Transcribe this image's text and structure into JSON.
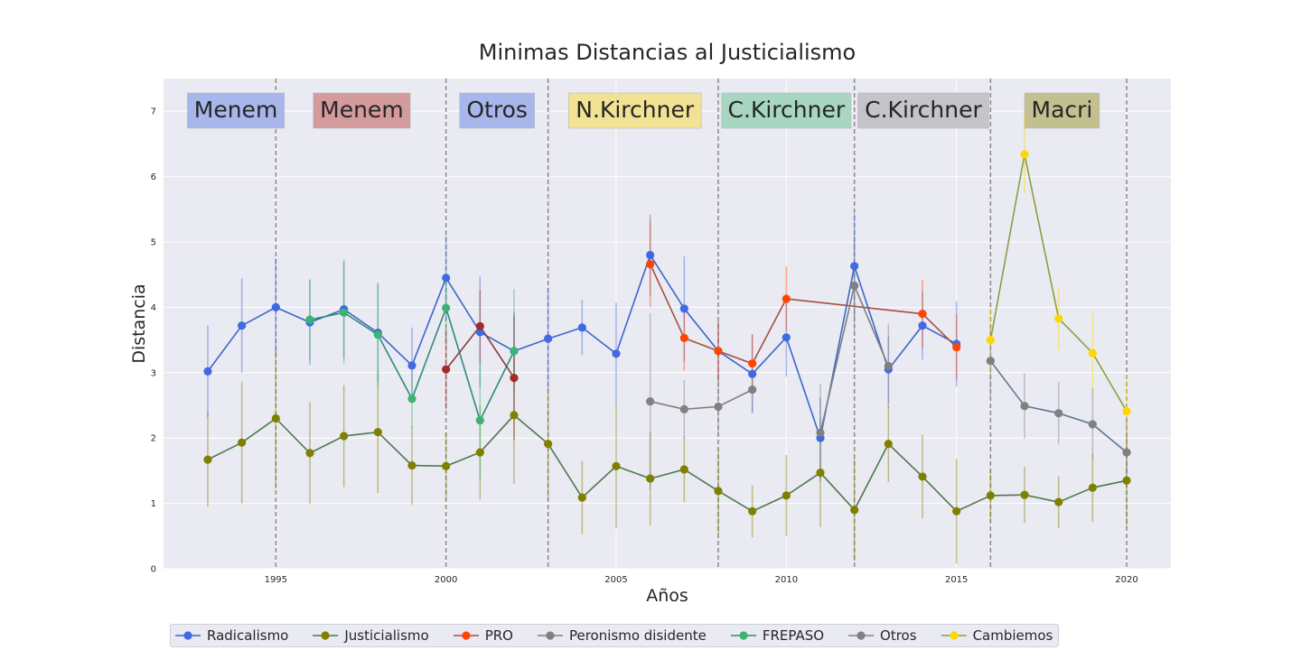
{
  "chart_data": {
    "type": "line",
    "title": "Minimas Distancias al Justicialismo",
    "xlabel": "Años",
    "ylabel": "Distancia",
    "xlim": [
      1991.7,
      2021.3
    ],
    "ylim": [
      0,
      7.5
    ],
    "xticks": [
      1995,
      2000,
      2005,
      2010,
      2015,
      2020
    ],
    "yticks": [
      0,
      1,
      2,
      3,
      4,
      5,
      6,
      7
    ],
    "grid": true,
    "legend_position": "bottom",
    "period_boundaries": [
      1995,
      2000,
      2003,
      2008,
      2012,
      2016,
      2020
    ],
    "eras": [
      {
        "label": "Menem",
        "x_from": 1992.4,
        "x_to": 1995.25,
        "color": "#a7b7ec"
      },
      {
        "label": "Menem",
        "x_from": 1996.1,
        "x_to": 1998.95,
        "color": "#d39b9b"
      },
      {
        "label": "Otros",
        "x_from": 2000.4,
        "x_to": 2002.6,
        "color": "#a7b7ec"
      },
      {
        "label": "N.Kirchner",
        "x_from": 2003.6,
        "x_to": 2007.5,
        "color": "#f2e294"
      },
      {
        "label": "C.Kirchner",
        "x_from": 2008.1,
        "x_to": 2011.9,
        "color": "#a7d6c1"
      },
      {
        "label": "C.Kirchner",
        "x_from": 2012.1,
        "x_to": 2015.95,
        "color": "#c4c4c9"
      },
      {
        "label": "Macri",
        "x_from": 2017.0,
        "x_to": 2019.2,
        "color": "#c2c08f"
      }
    ],
    "series": [
      {
        "name": "Radicalismo",
        "color": "#4169e1",
        "line_color": "#3b66c9",
        "x": [
          1993,
          1994,
          1995,
          1996,
          1997,
          1998,
          1999,
          2000,
          2001,
          2002,
          2003,
          2004,
          2005,
          2006,
          2007,
          2008,
          2009,
          2010,
          2011,
          2012,
          2013,
          2014,
          2015
        ],
        "y": [
          3.02,
          3.72,
          4.0,
          3.77,
          3.97,
          3.61,
          3.11,
          4.45,
          3.62,
          3.33,
          3.52,
          3.69,
          3.29,
          4.8,
          3.98,
          3.33,
          2.98,
          3.54,
          2.0,
          4.63,
          3.05,
          3.72,
          3.44
        ],
        "err": [
          0.7,
          0.72,
          0.75,
          0.65,
          0.75,
          0.75,
          0.58,
          0.65,
          0.85,
          0.6,
          0.78,
          0.42,
          0.78,
          0.62,
          0.8,
          0.45,
          0.6,
          0.6,
          0.62,
          0.8,
          0.52,
          0.52,
          0.65
        ]
      },
      {
        "name": "Justicialismo",
        "color": "#808000",
        "line_color": "#4c7a4c",
        "x": [
          1993,
          1994,
          1995,
          1996,
          1997,
          1998,
          1999,
          2000,
          2001,
          2002,
          2003,
          2004,
          2005,
          2006,
          2007,
          2008,
          2009,
          2010,
          2011,
          2012,
          2013,
          2014,
          2015,
          2016,
          2017,
          2018,
          2019,
          2020
        ],
        "y": [
          1.67,
          1.93,
          2.3,
          1.77,
          2.03,
          2.09,
          1.58,
          1.57,
          1.78,
          2.35,
          1.91,
          1.09,
          1.57,
          1.38,
          1.52,
          1.19,
          0.88,
          1.12,
          1.47,
          0.9,
          1.91,
          1.41,
          0.88,
          1.12,
          1.13,
          1.02,
          1.24,
          1.35
        ],
        "err": [
          0.72,
          0.93,
          1.08,
          0.78,
          0.78,
          0.93,
          0.6,
          0.52,
          0.72,
          1.05,
          0.85,
          0.56,
          0.95,
          0.72,
          0.5,
          0.65,
          0.4,
          0.62,
          0.83,
          0.78,
          0.58,
          0.64,
          0.8,
          0.4,
          0.43,
          0.4,
          0.52,
          0.72
        ]
      },
      {
        "name": "PRO",
        "color": "#ff4500",
        "line_color": "#a34f3f",
        "x": [
          2006,
          2007,
          2008,
          2009,
          2010,
          2014,
          2015
        ],
        "y": [
          4.66,
          3.53,
          3.33,
          3.14,
          4.13,
          3.9,
          3.39
        ],
        "err": [
          0.66,
          0.5,
          0.45,
          0.45,
          0.5,
          0.52,
          0.5
        ]
      },
      {
        "name": "Peronismo disidente",
        "color": "#808080",
        "line_color": "#808080",
        "x": [
          2006,
          2007,
          2008,
          2009
        ],
        "y": [
          2.56,
          2.44,
          2.48,
          2.74
        ],
        "err": [
          1.35,
          0.45,
          0.45,
          0.35
        ]
      },
      {
        "name": "FREPASO",
        "color": "#3cb371",
        "line_color": "#2e8b7a",
        "x": [
          1996,
          1997,
          1998,
          1999,
          2000,
          2001,
          2002
        ],
        "y": [
          3.81,
          3.92,
          3.58,
          2.6,
          3.99,
          2.27,
          3.33
        ],
        "err": [
          0.62,
          0.78,
          0.8,
          0.45,
          0.55,
          0.9,
          0.95
        ]
      },
      {
        "name": "Otros",
        "color": "#808080",
        "line_color": "#808080",
        "x": [
          2011,
          2012,
          2013
        ],
        "y": [
          2.08,
          4.33,
          3.1
        ],
        "err": [
          0.75,
          0.75,
          0.65
        ]
      },
      {
        "name": "Cambiemos",
        "color": "#ffd700",
        "line_color": "#8aa040",
        "x": [
          2016,
          2017,
          2018,
          2019,
          2020
        ],
        "y": [
          3.5,
          6.34,
          3.83,
          3.3,
          2.41
        ],
        "err": [
          0.5,
          0.6,
          0.48,
          0.62,
          0.55
        ]
      },
      {
        "name": "",
        "color": "#a52a2a",
        "line_color": "#8b3a3a",
        "in_legend": false,
        "x": [
          2000,
          2001,
          2002
        ],
        "y": [
          3.05,
          3.71,
          2.92
        ],
        "err": [
          0.62,
          0.55,
          0.95
        ]
      },
      {
        "name": "",
        "color": "#808080",
        "line_color": "#5e7890",
        "in_legend": false,
        "x": [
          2016,
          2017,
          2018,
          2019,
          2020
        ],
        "y": [
          3.18,
          2.49,
          2.38,
          2.21,
          1.78
        ],
        "err": [
          0.55,
          0.5,
          0.48,
          0.55,
          0.55
        ]
      }
    ]
  }
}
